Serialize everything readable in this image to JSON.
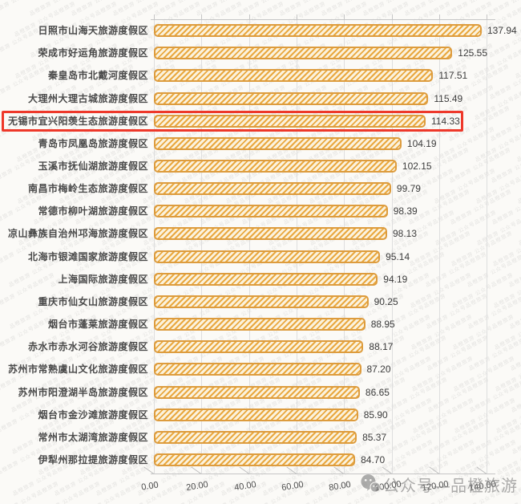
{
  "chart_data": {
    "type": "bar",
    "orientation": "horizontal",
    "title": "",
    "xlabel": "",
    "ylabel": "",
    "xlim": [
      0,
      140
    ],
    "grid": true,
    "legend": null,
    "categories": [
      "日照市山海天旅游度假区",
      "荣成市好运角旅游度假区",
      "秦皇岛市北戴河度假区",
      "大理州大理古城旅游度假区",
      "无锡市宜兴阳羡生态旅游度假区",
      "青岛市凤凰岛旅游度假区",
      "玉溪市抚仙湖旅游度假区",
      "南昌市梅岭生态旅游度假区",
      "常德市柳叶湖旅游度假区",
      "凉山彝族自治州邛海旅游度假区",
      "北海市银滩国家旅游度假区",
      "上海国际旅游度假区",
      "重庆市仙女山旅游度假区",
      "烟台市蓬莱旅游度假区",
      "赤水市赤水河谷旅游度假区",
      "苏州市常熟虞山文化旅游度假区",
      "苏州市阳澄湖半岛旅游度假区",
      "烟台市金沙滩旅游度假区",
      "常州市太湖湾旅游度假区",
      "伊犁州那拉提旅游度假区"
    ],
    "values": [
      137.94,
      125.55,
      117.51,
      115.49,
      114.33,
      104.19,
      102.15,
      99.79,
      98.39,
      98.13,
      95.14,
      94.19,
      90.25,
      88.95,
      88.17,
      87.2,
      86.65,
      85.9,
      85.37,
      84.7
    ],
    "xticks": [
      "0.00",
      "20.00",
      "40.00",
      "60.00",
      "80.00",
      "100.00",
      "120.00",
      "140.00"
    ],
    "highlight": {
      "index": 4,
      "category": "无锡市宜兴阳羡生态旅游度假区",
      "value": 114.33,
      "color": "#EE382A"
    }
  },
  "colors": {
    "bar_border": "#DD9C3E",
    "bar_stripe": "#E9A83F",
    "bar_fill_bg": "#FBF2DD",
    "highlight_box": "#EE382A",
    "label_text": "#4A4A4A",
    "value_text": "#3C3C3C",
    "tick_text": "#4F4F4F",
    "gridline": "#DEDEDE",
    "axis_line": "#C6C6C6",
    "watermark_gray": "#7D7D7D"
  },
  "watermark": {
    "footer_text": "公众号—品橙旅游",
    "tile_text": "品橙旅游 公众号品橙旅游",
    "icon": "wechat-icon"
  }
}
